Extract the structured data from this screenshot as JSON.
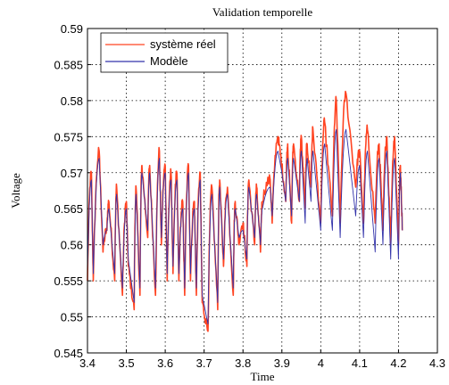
{
  "chart_data": {
    "type": "line",
    "title": "Validation temporelle",
    "xlabel": "Time",
    "ylabel": "Voltage",
    "xlim": [
      3.4,
      4.3
    ],
    "ylim": [
      0.545,
      0.59
    ],
    "xticks": [
      "3.4",
      "3.5",
      "3.6",
      "3.7",
      "3.8",
      "3.9",
      "4",
      "4.1",
      "4.2",
      "4.3"
    ],
    "yticks": [
      "0.545",
      "0.55",
      "0.555",
      "0.56",
      "0.565",
      "0.57",
      "0.575",
      "0.58",
      "0.585",
      "0.59"
    ],
    "grid": true,
    "legend": "top-left",
    "series": [
      {
        "name": "système réel",
        "color": "#ff4422",
        "noise": true,
        "x": [
          3.4,
          3.41,
          3.415,
          3.43,
          3.44,
          3.45,
          3.455,
          3.47,
          3.475,
          3.49,
          3.5,
          3.505,
          3.52,
          3.525,
          3.535,
          3.54,
          3.555,
          3.56,
          3.575,
          3.585,
          3.59,
          3.6,
          3.605,
          3.615,
          3.62,
          3.63,
          3.635,
          3.645,
          3.65,
          3.66,
          3.665,
          3.675,
          3.68,
          3.69,
          3.695,
          3.71,
          3.72,
          3.735,
          3.74,
          3.75,
          3.76,
          3.775,
          3.78,
          3.79,
          3.8,
          3.81,
          3.815,
          3.83,
          3.835,
          3.845,
          3.85,
          3.87,
          3.875,
          3.89,
          3.9,
          3.91,
          3.915,
          3.925,
          3.93,
          3.945,
          3.95,
          3.96,
          3.965,
          3.975,
          3.98,
          4.0,
          4.01,
          4.03,
          4.04,
          4.05,
          4.065,
          4.09,
          4.1,
          4.11,
          4.12,
          4.14,
          4.15,
          4.16,
          4.17,
          4.18,
          4.19,
          4.2,
          4.205,
          4.21
        ],
        "y": [
          0.555,
          0.57,
          0.555,
          0.573,
          0.559,
          0.562,
          0.566,
          0.555,
          0.568,
          0.553,
          0.566,
          0.557,
          0.551,
          0.568,
          0.553,
          0.571,
          0.561,
          0.571,
          0.553,
          0.573,
          0.56,
          0.571,
          0.555,
          0.57,
          0.556,
          0.57,
          0.555,
          0.566,
          0.553,
          0.571,
          0.555,
          0.566,
          0.553,
          0.57,
          0.552,
          0.548,
          0.568,
          0.551,
          0.569,
          0.557,
          0.568,
          0.553,
          0.566,
          0.56,
          0.563,
          0.557,
          0.569,
          0.56,
          0.568,
          0.559,
          0.566,
          0.569,
          0.563,
          0.575,
          0.571,
          0.566,
          0.574,
          0.563,
          0.574,
          0.566,
          0.575,
          0.565,
          0.574,
          0.568,
          0.576,
          0.563,
          0.577,
          0.564,
          0.58,
          0.563,
          0.581,
          0.568,
          0.573,
          0.563,
          0.576,
          0.563,
          0.574,
          0.562,
          0.575,
          0.56,
          0.575,
          0.56,
          0.571,
          0.562
        ]
      },
      {
        "name": "Modèle",
        "color": "#3333aa",
        "noise": false,
        "x": [
          3.4,
          3.41,
          3.415,
          3.43,
          3.44,
          3.45,
          3.455,
          3.47,
          3.475,
          3.49,
          3.5,
          3.505,
          3.52,
          3.525,
          3.535,
          3.54,
          3.555,
          3.56,
          3.575,
          3.585,
          3.59,
          3.6,
          3.605,
          3.615,
          3.62,
          3.63,
          3.635,
          3.645,
          3.65,
          3.66,
          3.665,
          3.675,
          3.68,
          3.69,
          3.695,
          3.71,
          3.72,
          3.735,
          3.74,
          3.75,
          3.76,
          3.775,
          3.78,
          3.79,
          3.8,
          3.81,
          3.815,
          3.83,
          3.835,
          3.845,
          3.85,
          3.87,
          3.875,
          3.89,
          3.9,
          3.91,
          3.915,
          3.925,
          3.93,
          3.945,
          3.95,
          3.96,
          3.965,
          3.975,
          3.98,
          4.0,
          4.01,
          4.03,
          4.04,
          4.05,
          4.065,
          4.09,
          4.1,
          4.11,
          4.12,
          4.14,
          4.15,
          4.16,
          4.17,
          4.18,
          4.19,
          4.2,
          4.205,
          4.21
        ],
        "y": [
          0.556,
          0.569,
          0.556,
          0.572,
          0.56,
          0.562,
          0.565,
          0.556,
          0.567,
          0.554,
          0.565,
          0.558,
          0.552,
          0.567,
          0.554,
          0.57,
          0.562,
          0.57,
          0.554,
          0.572,
          0.561,
          0.57,
          0.556,
          0.569,
          0.557,
          0.569,
          0.556,
          0.565,
          0.554,
          0.57,
          0.556,
          0.565,
          0.554,
          0.569,
          0.553,
          0.549,
          0.567,
          0.552,
          0.568,
          0.558,
          0.567,
          0.554,
          0.565,
          0.561,
          0.562,
          0.558,
          0.568,
          0.561,
          0.567,
          0.56,
          0.565,
          0.568,
          0.564,
          0.573,
          0.57,
          0.566,
          0.572,
          0.564,
          0.572,
          0.566,
          0.573,
          0.563,
          0.572,
          0.566,
          0.573,
          0.562,
          0.574,
          0.562,
          0.576,
          0.561,
          0.576,
          0.564,
          0.571,
          0.561,
          0.573,
          0.559,
          0.572,
          0.56,
          0.573,
          0.558,
          0.572,
          0.558,
          0.57,
          0.562
        ]
      }
    ]
  }
}
